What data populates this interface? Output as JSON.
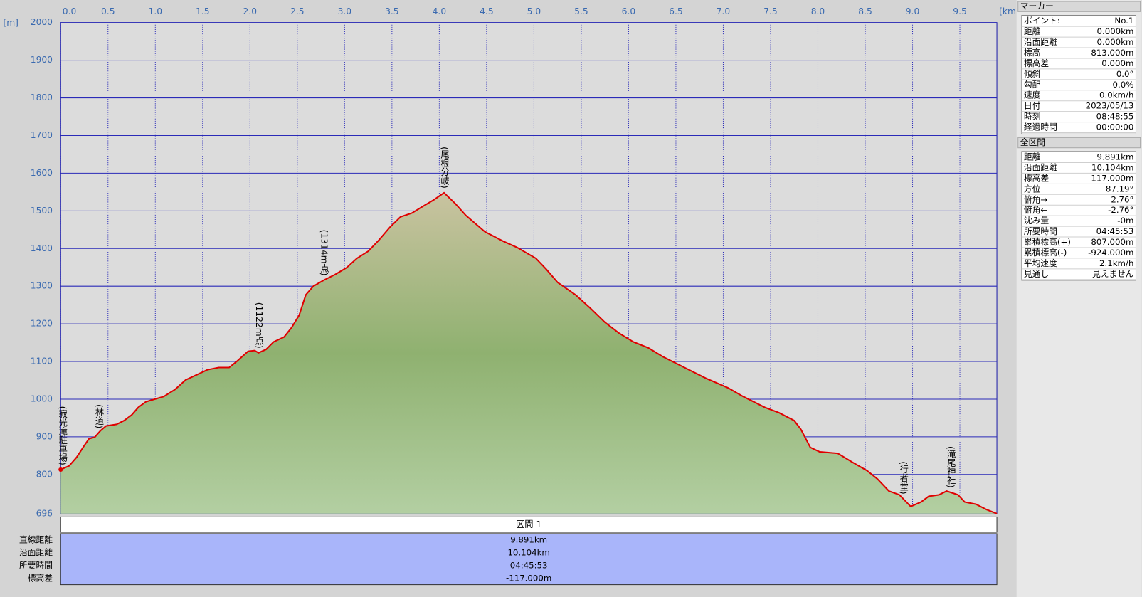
{
  "chart_data": {
    "type": "area",
    "y_unit": "[m]",
    "x_unit": "[km]",
    "x": [
      0,
      0.09,
      0.17,
      0.25,
      0.3,
      0.36,
      0.42,
      0.48,
      0.59,
      0.67,
      0.75,
      0.82,
      0.9,
      0.98,
      1.09,
      1.21,
      1.32,
      1.44,
      1.55,
      1.67,
      1.78,
      1.86,
      1.98,
      2.05,
      2.09,
      2.17,
      2.25,
      2.36,
      2.44,
      2.52,
      2.59,
      2.67,
      2.78,
      2.9,
      3.02,
      3.13,
      3.25,
      3.36,
      3.48,
      3.59,
      3.71,
      3.82,
      3.94,
      4.05,
      4.17,
      4.28,
      4.48,
      4.67,
      4.82,
      5.02,
      5.13,
      5.25,
      5.44,
      5.59,
      5.75,
      5.9,
      6.05,
      6.21,
      6.36,
      6.59,
      6.82,
      7.05,
      7.21,
      7.44,
      7.59,
      7.75,
      7.82,
      7.92,
      8.02,
      8.21,
      8.36,
      8.52,
      8.63,
      8.75,
      8.86,
      8.98,
      9.09,
      9.17,
      9.28,
      9.36,
      9.48,
      9.55,
      9.67,
      9.78,
      9.891
    ],
    "values": [
      813,
      823,
      846,
      877,
      895,
      899,
      916,
      929,
      933,
      943,
      958,
      978,
      993,
      999,
      1007,
      1026,
      1051,
      1065,
      1078,
      1084,
      1084,
      1100,
      1127,
      1129,
      1123,
      1132,
      1152,
      1165,
      1190,
      1223,
      1277,
      1300,
      1316,
      1331,
      1349,
      1374,
      1393,
      1422,
      1457,
      1484,
      1494,
      1511,
      1529,
      1548,
      1519,
      1488,
      1445,
      1420,
      1403,
      1374,
      1345,
      1310,
      1277,
      1243,
      1204,
      1175,
      1152,
      1136,
      1113,
      1084,
      1055,
      1030,
      1007,
      978,
      964,
      943,
      920,
      872,
      860,
      856,
      833,
      810,
      788,
      756,
      746,
      715,
      727,
      742,
      746,
      756,
      746,
      727,
      721,
      707,
      696
    ],
    "color": "#e00000",
    "xlim": [
      0,
      9.891
    ],
    "ylim": [
      696,
      2000
    ],
    "xticks": [
      {
        "value": 0,
        "label": "0.0"
      },
      0.5,
      {
        "value": 1,
        "label": "1.0"
      },
      1.5,
      {
        "value": 2,
        "label": "2.0"
      },
      2.5,
      {
        "value": 3,
        "label": "3.0"
      },
      3.5,
      {
        "value": 4,
        "label": "4.0"
      },
      4.5,
      {
        "value": 5,
        "label": "5.0"
      },
      5.5,
      {
        "value": 6,
        "label": "6.0"
      },
      6.5,
      {
        "value": 7,
        "label": "7.0"
      },
      7.5,
      {
        "value": 8,
        "label": "8.0"
      },
      8.5,
      {
        "value": 9,
        "label": "9.0"
      },
      9.5
    ],
    "yticks": [
      696,
      800,
      900,
      1000,
      1100,
      1200,
      1300,
      1400,
      1500,
      1600,
      1700,
      1800,
      1900,
      2000
    ],
    "grid": true,
    "annotations": [
      {
        "x": 0,
        "label": "(寂光滝駐車場)"
      },
      {
        "x": 0.4,
        "label": "(林道)"
      },
      {
        "x": 2.09,
        "label": "(1122m点)"
      },
      {
        "x": 2.78,
        "label": "(1314m点)"
      },
      {
        "x": 4.05,
        "label": "(尾根分岐)"
      },
      {
        "x": 8.9,
        "label": "(行者堂)"
      },
      {
        "x": 9.4,
        "label": "(滝尾神社)"
      }
    ]
  },
  "section_table": {
    "header": "区間 1",
    "rows": [
      [
        "直線距離",
        "9.891km"
      ],
      [
        "沿面距離",
        "10.104km"
      ],
      [
        "所要時間",
        "04:45:53"
      ],
      [
        "標高差",
        "-117.000m"
      ]
    ]
  },
  "marker_panel": {
    "title": "マーカー",
    "rows": [
      [
        "ポイント:",
        "No.1"
      ],
      [
        "距離",
        "0.000km"
      ],
      [
        "沿面距離",
        "0.000km"
      ],
      [
        "標高",
        "813.000m"
      ],
      [
        "標高差",
        "0.000m"
      ],
      [
        "傾斜",
        "0.0°"
      ],
      [
        "勾配",
        "0.0%"
      ],
      [
        "速度",
        "0.0km/h"
      ],
      [
        "日付",
        "2023/05/13"
      ],
      [
        "時刻",
        "08:48:55"
      ],
      [
        "経過時間",
        "00:00:00"
      ]
    ]
  },
  "total_panel": {
    "title": "全区間",
    "rows": [
      [
        "距離",
        "9.891km"
      ],
      [
        "沿面距離",
        "10.104km"
      ],
      [
        "標高差",
        "-117.000m"
      ],
      [
        "方位",
        "87.19°"
      ],
      [
        "俯角→",
        "2.76°"
      ],
      [
        "俯角←",
        "-2.76°"
      ],
      [
        "沈み量",
        "-0m"
      ],
      [
        "所要時間",
        "04:45:53"
      ],
      [
        "累積標高(+)",
        "807.000m"
      ],
      [
        "累積標高(-)",
        "-924.000m"
      ],
      [
        "平均速度",
        "2.1km/h"
      ],
      [
        "見通し",
        "見えません"
      ]
    ]
  }
}
